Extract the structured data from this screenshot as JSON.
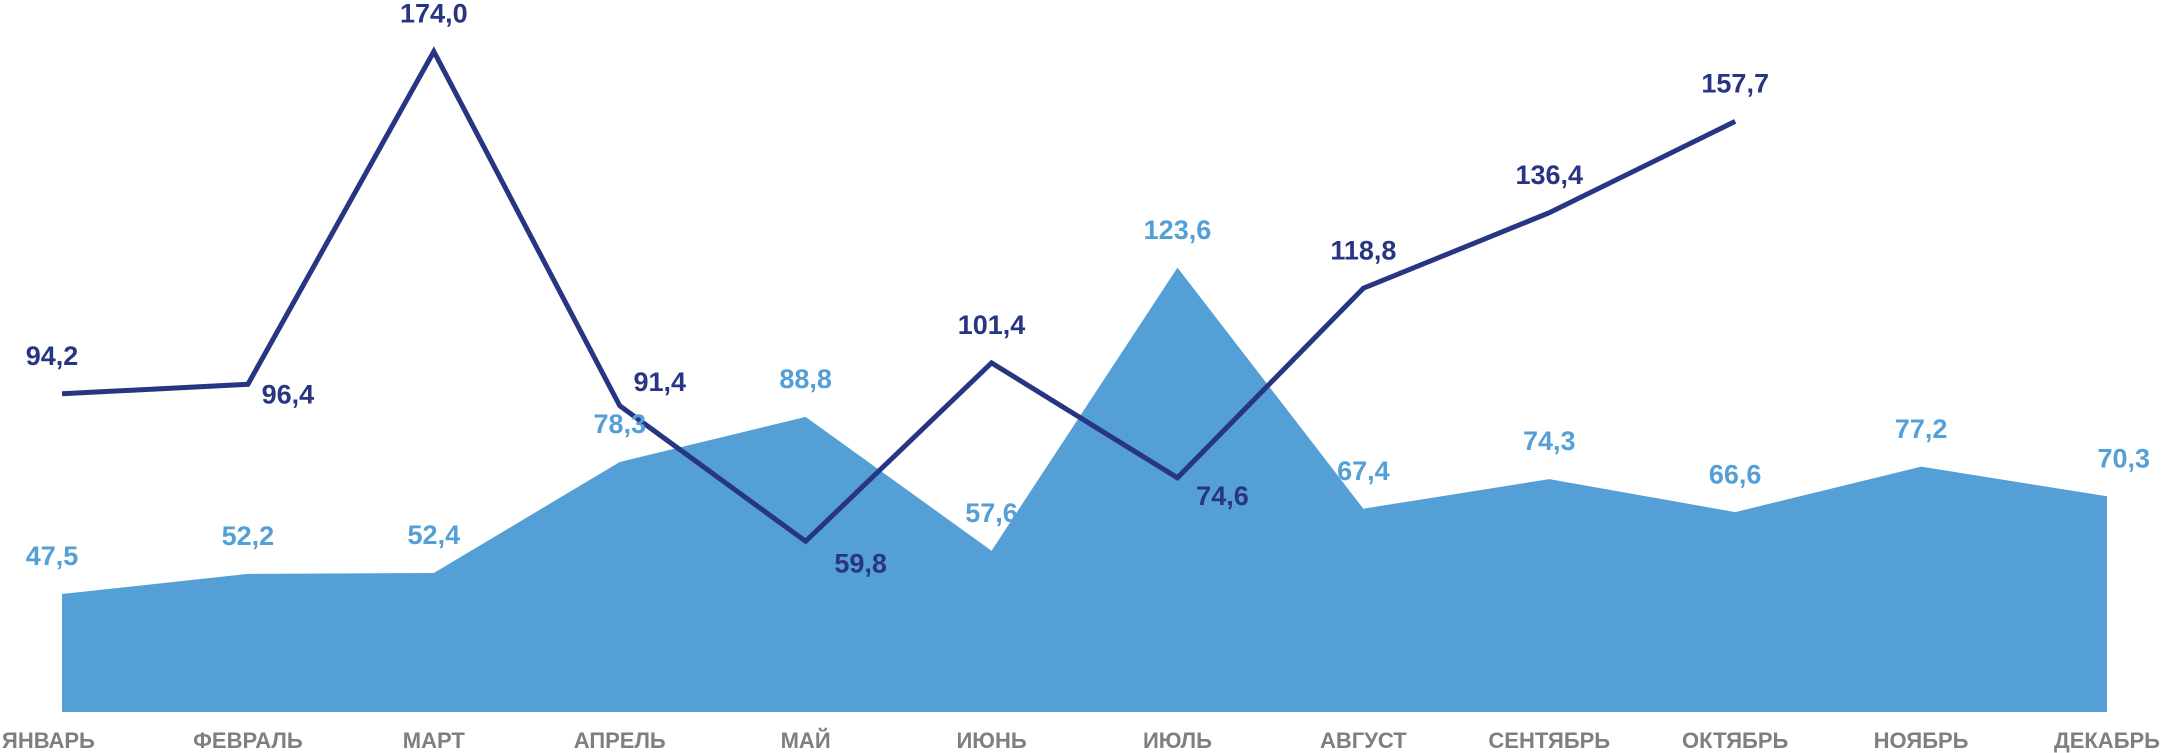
{
  "chart_data": {
    "type": "line",
    "categories": [
      "ЯНВАРЬ",
      "ФЕВРАЛЬ",
      "МАРТ",
      "АПРЕЛЬ",
      "МАЙ",
      "ИЮНЬ",
      "ИЮЛЬ",
      "АВГУСТ",
      "СЕНТЯБРЬ",
      "ОКТЯБРЬ",
      "НОЯБРЬ",
      "ДЕКАБРЬ"
    ],
    "series": [
      {
        "type": "area",
        "color": "#549fd6",
        "values": [
          47.5,
          52.2,
          52.4,
          78.3,
          88.8,
          57.6,
          123.6,
          67.4,
          74.3,
          66.6,
          77.2,
          70.3
        ],
        "value_labels": [
          "47,5",
          "52,2",
          "52,4",
          "78,3",
          "88,8",
          "57,6",
          "123,6",
          "67,4",
          "74,3",
          "66,6",
          "77,2",
          "70,3"
        ]
      },
      {
        "type": "line",
        "color": "#283583",
        "values": [
          94.2,
          96.4,
          174.0,
          91.4,
          59.8,
          101.4,
          74.6,
          118.8,
          136.4,
          157.7,
          null,
          null
        ],
        "value_labels": [
          "94,2",
          "96,4",
          "174,0",
          "91,4",
          "59,8",
          "101,4",
          "74,6",
          "118,8",
          "136,4",
          "157,7",
          null,
          null
        ]
      }
    ],
    "ylim": [
      20,
      186
    ]
  }
}
